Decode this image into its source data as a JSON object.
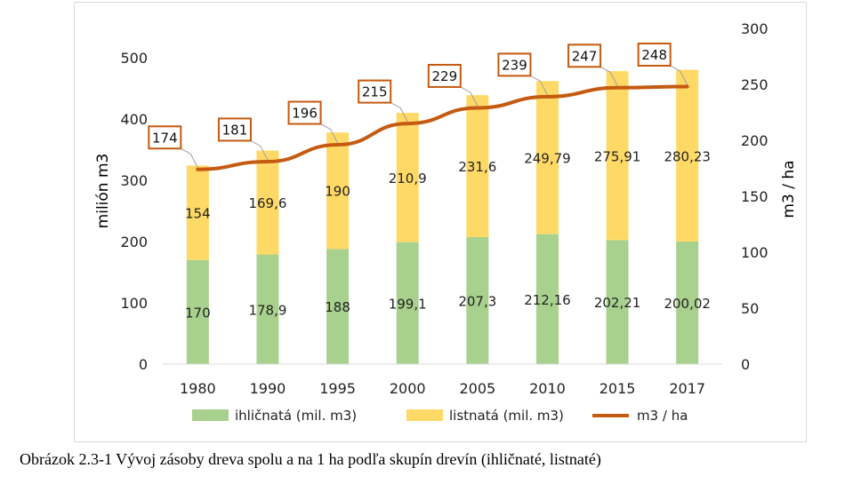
{
  "chart_data": {
    "type": "bar",
    "stacked": true,
    "categories": [
      "1980",
      "1990",
      "1995",
      "2000",
      "2005",
      "2010",
      "2015",
      "2017"
    ],
    "series": [
      {
        "name": "ihličnatá (mil. m3)",
        "color": "#a9d18e",
        "axis": "left",
        "values": [
          170,
          178.9,
          188,
          199.1,
          207.3,
          212.16,
          202.21,
          200.02
        ],
        "labels": [
          "170",
          "178,9",
          "188",
          "199,1",
          "207,3",
          "212,16",
          "202,21",
          "200,02"
        ]
      },
      {
        "name": "listnatá (mil. m3)",
        "color": "#ffd966",
        "axis": "left",
        "values": [
          154,
          169.6,
          190,
          210.9,
          231.6,
          249.79,
          275.91,
          280.23
        ],
        "labels": [
          "154",
          "169,6",
          "190",
          "210,9",
          "231,6",
          "249,79",
          "275,91",
          "280,23"
        ]
      },
      {
        "name": "m3 / ha",
        "type": "line",
        "color": "#c55a11",
        "axis": "right",
        "values": [
          174,
          181,
          196,
          215,
          229,
          239,
          247,
          248
        ],
        "labels": [
          "174",
          "181",
          "196",
          "215",
          "229",
          "239",
          "247",
          "248"
        ]
      }
    ],
    "ylabel": "milión m3",
    "y2label": "m3 / ha",
    "ylim": [
      0,
      500
    ],
    "yticks": [
      "0",
      "100",
      "200",
      "300",
      "400",
      "500"
    ],
    "y2lim": [
      0,
      300
    ],
    "y2ticks": [
      "0",
      "50",
      "100",
      "150",
      "200",
      "250",
      "300"
    ],
    "legend_position": "bottom",
    "grid": false
  },
  "caption": "Obrázok 2.3-1 Vývoj zásoby dreva spolu a na 1 ha podľa skupín drevín (ihličnaté, listnaté)"
}
